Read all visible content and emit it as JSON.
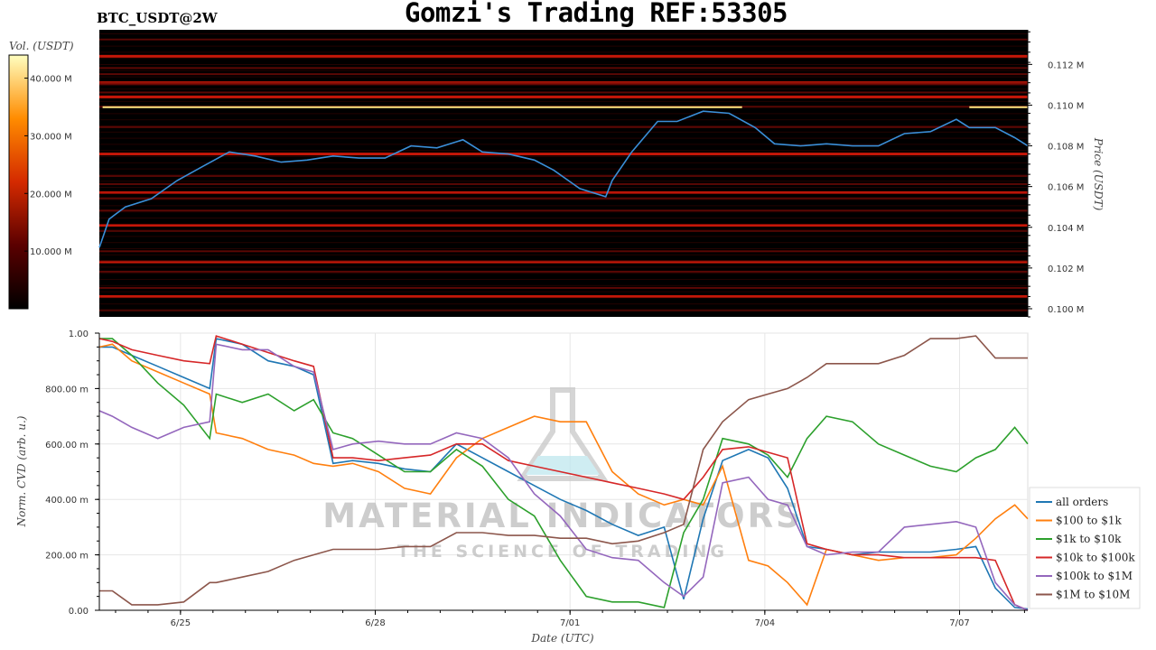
{
  "header": {
    "title": "Gomzi's Trading REF:53305",
    "symbol": "BTC_USDT@2W"
  },
  "watermark": {
    "main": "MATERIAL INDICATORS",
    "sub": "THE SCIENCE OF TRADING"
  },
  "chart_data": [
    {
      "type": "heatmap",
      "description_series": "BTC price line over order-book liquidity heatmap",
      "colorbar": {
        "label": "Vol. (USDT)",
        "ticks": [
          "40.000 M",
          "30.000 M",
          "20.000 M",
          "10.000 M"
        ],
        "tick_values": [
          40,
          30,
          20,
          10
        ],
        "range": [
          0,
          44
        ]
      },
      "ylabel": "Price (USDT)",
      "yticks": [
        "0.100 M",
        "0.102 M",
        "0.104 M",
        "0.106 M",
        "0.108 M",
        "0.110 M",
        "0.112 M"
      ],
      "ytick_values": [
        100000,
        102000,
        104000,
        106000,
        108000,
        110000,
        112000
      ],
      "ylim": [
        99600,
        113700
      ],
      "xlim": [
        0,
        14.3
      ],
      "price_x": [
        0,
        0.15,
        0.4,
        0.8,
        1.2,
        1.6,
        2.0,
        2.4,
        2.8,
        3.2,
        3.6,
        4.0,
        4.4,
        4.8,
        5.2,
        5.6,
        5.9,
        6.3,
        6.7,
        7.0,
        7.4,
        7.8,
        7.9,
        8.2,
        8.6,
        8.9,
        9.3,
        9.7,
        10.1,
        10.4,
        10.8,
        11.2,
        11.6,
        12.0,
        12.4,
        12.8,
        13.2,
        13.4,
        13.8,
        14.1,
        14.3
      ],
      "price_y": [
        103000,
        104400,
        105000,
        105400,
        106300,
        107000,
        107700,
        107500,
        107200,
        107300,
        107500,
        107400,
        107400,
        108000,
        107900,
        108300,
        107700,
        107600,
        107300,
        106800,
        105900,
        105500,
        106300,
        107700,
        109200,
        109200,
        109700,
        109600,
        108900,
        108100,
        108000,
        108100,
        108000,
        108000,
        108600,
        108700,
        109300,
        108900,
        108900,
        108400,
        108000
      ],
      "bright_levels": [
        {
          "price": 109900,
          "x0": 0.05,
          "x1": 9.9,
          "color": "#ffe680"
        },
        {
          "price": 109900,
          "x0": 13.4,
          "x1": 14.3,
          "color": "#ffe680"
        }
      ],
      "red_levels": [
        113200,
        112400,
        111800,
        111500,
        111100,
        111000,
        110600,
        110400,
        109900,
        108900,
        107600,
        106500,
        106100,
        105700,
        105400,
        104800,
        104100,
        103800,
        102800,
        102300,
        101800,
        101000,
        100600,
        99900
      ]
    },
    {
      "type": "line",
      "xlabel": "Date (UTC)",
      "ylabel": "Norm. CVD (arb. u.)",
      "xticks": [
        "6/25",
        "6/28",
        "7/01",
        "7/04",
        "7/07"
      ],
      "xtick_values": [
        1.25,
        4.25,
        7.25,
        10.25,
        13.25
      ],
      "xlim": [
        0,
        14.3
      ],
      "yticks": [
        "0.00",
        "200.00 m",
        "400.00 m",
        "600.00 m",
        "800.00 m",
        "1.00"
      ],
      "ytick_values": [
        0,
        0.2,
        0.4,
        0.6,
        0.8,
        1.0
      ],
      "ylim": [
        0,
        1.0
      ],
      "legend": "right",
      "x": [
        0,
        0.2,
        0.5,
        0.9,
        1.3,
        1.7,
        1.8,
        2.2,
        2.6,
        3.0,
        3.3,
        3.6,
        3.9,
        4.3,
        4.7,
        5.1,
        5.5,
        5.9,
        6.3,
        6.7,
        7.1,
        7.5,
        7.9,
        8.3,
        8.7,
        9.0,
        9.3,
        9.6,
        10.0,
        10.3,
        10.6,
        10.9,
        11.2,
        11.6,
        12.0,
        12.4,
        12.8,
        13.2,
        13.5,
        13.8,
        14.1,
        14.3
      ],
      "series": [
        {
          "name": "all orders",
          "color": "#1f77b4",
          "values": [
            0.95,
            0.95,
            0.92,
            0.88,
            0.84,
            0.8,
            0.98,
            0.96,
            0.9,
            0.88,
            0.85,
            0.53,
            0.54,
            0.53,
            0.51,
            0.5,
            0.6,
            0.55,
            0.5,
            0.45,
            0.4,
            0.36,
            0.31,
            0.27,
            0.3,
            0.04,
            0.33,
            0.54,
            0.58,
            0.55,
            0.44,
            0.23,
            0.22,
            0.2,
            0.21,
            0.21,
            0.21,
            0.22,
            0.23,
            0.08,
            0.01,
            0.005
          ]
        },
        {
          "name": "$100 to $1k",
          "color": "#ff7f0e",
          "values": [
            0.95,
            0.96,
            0.9,
            0.86,
            0.82,
            0.78,
            0.64,
            0.62,
            0.58,
            0.56,
            0.53,
            0.52,
            0.53,
            0.5,
            0.44,
            0.42,
            0.55,
            0.62,
            0.66,
            0.7,
            0.68,
            0.68,
            0.5,
            0.42,
            0.38,
            0.4,
            0.38,
            0.52,
            0.18,
            0.16,
            0.1,
            0.02,
            0.22,
            0.2,
            0.18,
            0.19,
            0.19,
            0.2,
            0.26,
            0.33,
            0.38,
            0.33
          ]
        },
        {
          "name": "$1k to $10k",
          "color": "#2ca02c",
          "values": [
            0.98,
            0.98,
            0.92,
            0.82,
            0.74,
            0.62,
            0.78,
            0.75,
            0.78,
            0.72,
            0.76,
            0.64,
            0.62,
            0.56,
            0.5,
            0.5,
            0.58,
            0.52,
            0.4,
            0.34,
            0.18,
            0.05,
            0.03,
            0.03,
            0.01,
            0.28,
            0.4,
            0.62,
            0.6,
            0.56,
            0.48,
            0.62,
            0.7,
            0.68,
            0.6,
            0.56,
            0.52,
            0.5,
            0.55,
            0.58,
            0.66,
            0.6
          ]
        },
        {
          "name": "$10k to $100k",
          "color": "#d62728",
          "values": [
            0.98,
            0.97,
            0.94,
            0.92,
            0.9,
            0.89,
            0.99,
            0.96,
            0.93,
            0.9,
            0.88,
            0.55,
            0.55,
            0.54,
            0.55,
            0.56,
            0.6,
            0.6,
            0.54,
            0.52,
            0.5,
            0.48,
            0.46,
            0.44,
            0.42,
            0.4,
            0.48,
            0.58,
            0.59,
            0.57,
            0.55,
            0.24,
            0.22,
            0.2,
            0.2,
            0.19,
            0.19,
            0.19,
            0.19,
            0.18,
            0.02,
            0.0
          ]
        },
        {
          "name": "$100k to $1M",
          "color": "#9467bd",
          "values": [
            0.72,
            0.7,
            0.66,
            0.62,
            0.66,
            0.68,
            0.96,
            0.94,
            0.94,
            0.88,
            0.86,
            0.58,
            0.6,
            0.61,
            0.6,
            0.6,
            0.64,
            0.62,
            0.55,
            0.42,
            0.34,
            0.22,
            0.19,
            0.18,
            0.1,
            0.05,
            0.12,
            0.46,
            0.48,
            0.4,
            0.38,
            0.23,
            0.2,
            0.21,
            0.21,
            0.3,
            0.31,
            0.32,
            0.3,
            0.1,
            0.02,
            0.0
          ]
        },
        {
          "name": "$1M to $10M",
          "color": "#8c564b",
          "values": [
            0.07,
            0.07,
            0.02,
            0.02,
            0.03,
            0.1,
            0.1,
            0.12,
            0.14,
            0.18,
            0.2,
            0.22,
            0.22,
            0.22,
            0.23,
            0.23,
            0.28,
            0.28,
            0.27,
            0.27,
            0.26,
            0.26,
            0.24,
            0.25,
            0.28,
            0.31,
            0.58,
            0.68,
            0.76,
            0.78,
            0.8,
            0.84,
            0.89,
            0.89,
            0.89,
            0.92,
            0.98,
            0.98,
            0.99,
            0.91,
            0.91,
            0.91
          ]
        }
      ]
    }
  ]
}
